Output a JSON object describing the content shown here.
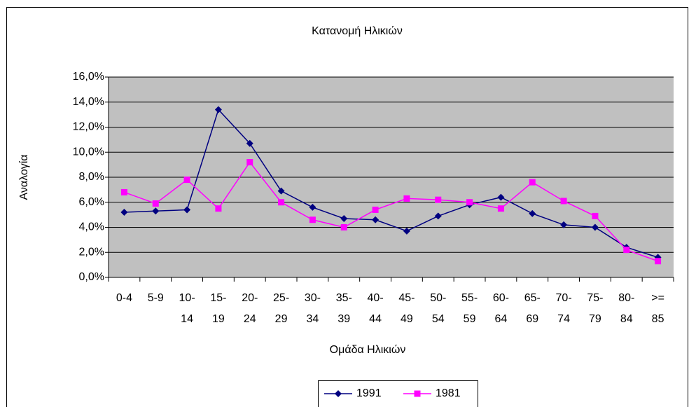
{
  "chart_data": {
    "type": "line",
    "title": "Κατανομή Ηλικιών",
    "x_label": "Ομάδα Ηλικιών",
    "y_label": "Αναλογία",
    "categories": [
      [
        "0-4"
      ],
      [
        "5-9"
      ],
      [
        "10-",
        "14"
      ],
      [
        "15-",
        "19"
      ],
      [
        "20-",
        "24"
      ],
      [
        "25-",
        "29"
      ],
      [
        "30-",
        "34"
      ],
      [
        "35-",
        "39"
      ],
      [
        "40-",
        "44"
      ],
      [
        "45-",
        "49"
      ],
      [
        "50-",
        "54"
      ],
      [
        "55-",
        "59"
      ],
      [
        "60-",
        "64"
      ],
      [
        "65-",
        "69"
      ],
      [
        "70-",
        "74"
      ],
      [
        "75-",
        "79"
      ],
      [
        "80-",
        "84"
      ],
      [
        ">=",
        "85"
      ]
    ],
    "series": [
      {
        "name": "1991",
        "color": "#000080",
        "marker": "diamond",
        "values": [
          5.2,
          5.3,
          5.4,
          13.4,
          10.7,
          6.9,
          5.6,
          4.7,
          4.6,
          3.7,
          4.9,
          5.8,
          6.4,
          5.1,
          4.2,
          4.0,
          2.4,
          1.6
        ]
      },
      {
        "name": "1981",
        "color": "#ff00ff",
        "marker": "square",
        "values": [
          6.8,
          5.9,
          7.8,
          5.5,
          9.2,
          6.0,
          4.6,
          4.0,
          5.4,
          6.3,
          6.2,
          6.0,
          5.5,
          7.6,
          6.1,
          4.9,
          2.2,
          1.3
        ]
      }
    ],
    "ylim": [
      0,
      16
    ],
    "yticks": [
      {
        "value": 0,
        "label": "0,0%"
      },
      {
        "value": 2,
        "label": "2,0%"
      },
      {
        "value": 4,
        "label": "4,0%"
      },
      {
        "value": 6,
        "label": "6,0%"
      },
      {
        "value": 8,
        "label": "8,0%"
      },
      {
        "value": 10,
        "label": "10,0%"
      },
      {
        "value": 12,
        "label": "12,0%"
      },
      {
        "value": 14,
        "label": "14,0%"
      },
      {
        "value": 16,
        "label": "16,0%"
      }
    ],
    "grid": true,
    "plot_background": "#c0c0c0",
    "legend": "bottom"
  }
}
